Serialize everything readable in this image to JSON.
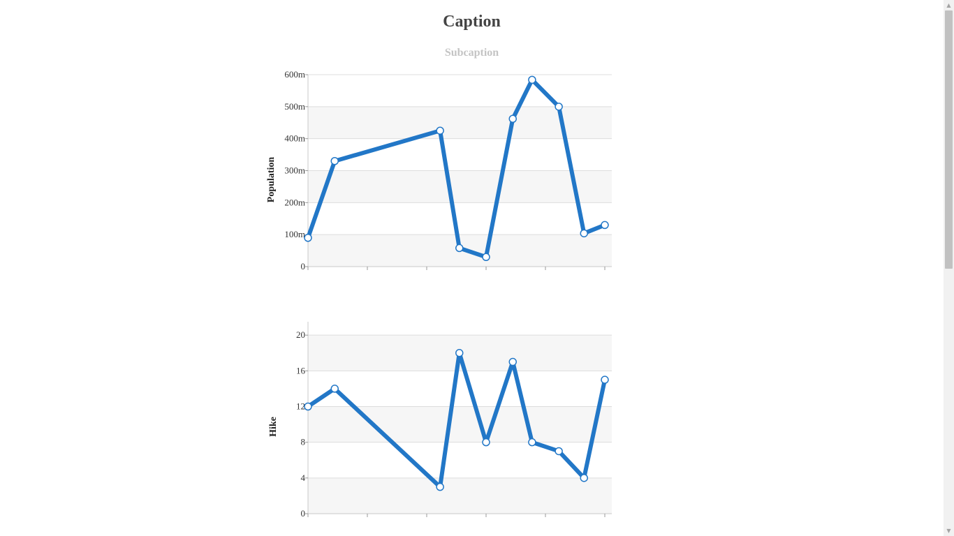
{
  "page": {
    "caption": "Caption",
    "subcaption": "Subcaption"
  },
  "style": {
    "line_color": "#2277c7",
    "band_color": "#f6f6f6",
    "grid_color": "#dddddd",
    "axis_color": "#c8c8c8"
  },
  "chart_data": [
    {
      "type": "line",
      "ylabel": "Population",
      "ylim": [
        0,
        600
      ],
      "y_ticks": [
        0,
        100,
        200,
        300,
        400,
        500,
        600
      ],
      "y_tick_labels": [
        "0",
        "100m",
        "200m",
        "300m",
        "400m",
        "500m",
        "600m"
      ],
      "x_range": [
        0,
        10
      ],
      "x_ticks": [
        0,
        2,
        4,
        6,
        8,
        10
      ],
      "grid": true,
      "series": [
        {
          "x": [
            0,
            0.9,
            4.45,
            5.1,
            6,
            6.9,
            7.55,
            8.45,
            9.3,
            10
          ],
          "values": [
            90,
            330,
            425,
            58,
            30,
            462,
            584,
            500,
            104,
            130
          ]
        }
      ]
    },
    {
      "type": "line",
      "ylabel": "Hike",
      "ylim": [
        0,
        21.5
      ],
      "y_ticks": [
        0,
        4,
        8,
        12,
        16,
        20
      ],
      "y_tick_labels": [
        "0",
        "4",
        "8",
        "12",
        "16",
        "20"
      ],
      "x_range": [
        0,
        10
      ],
      "x_ticks": [
        0,
        2,
        4,
        6,
        8,
        10
      ],
      "grid": true,
      "series": [
        {
          "x": [
            0,
            0.9,
            4.45,
            5.1,
            6,
            6.9,
            7.55,
            8.45,
            9.3,
            10
          ],
          "values": [
            12,
            14,
            3,
            18,
            8,
            17,
            8,
            7,
            4,
            15
          ]
        }
      ]
    }
  ]
}
